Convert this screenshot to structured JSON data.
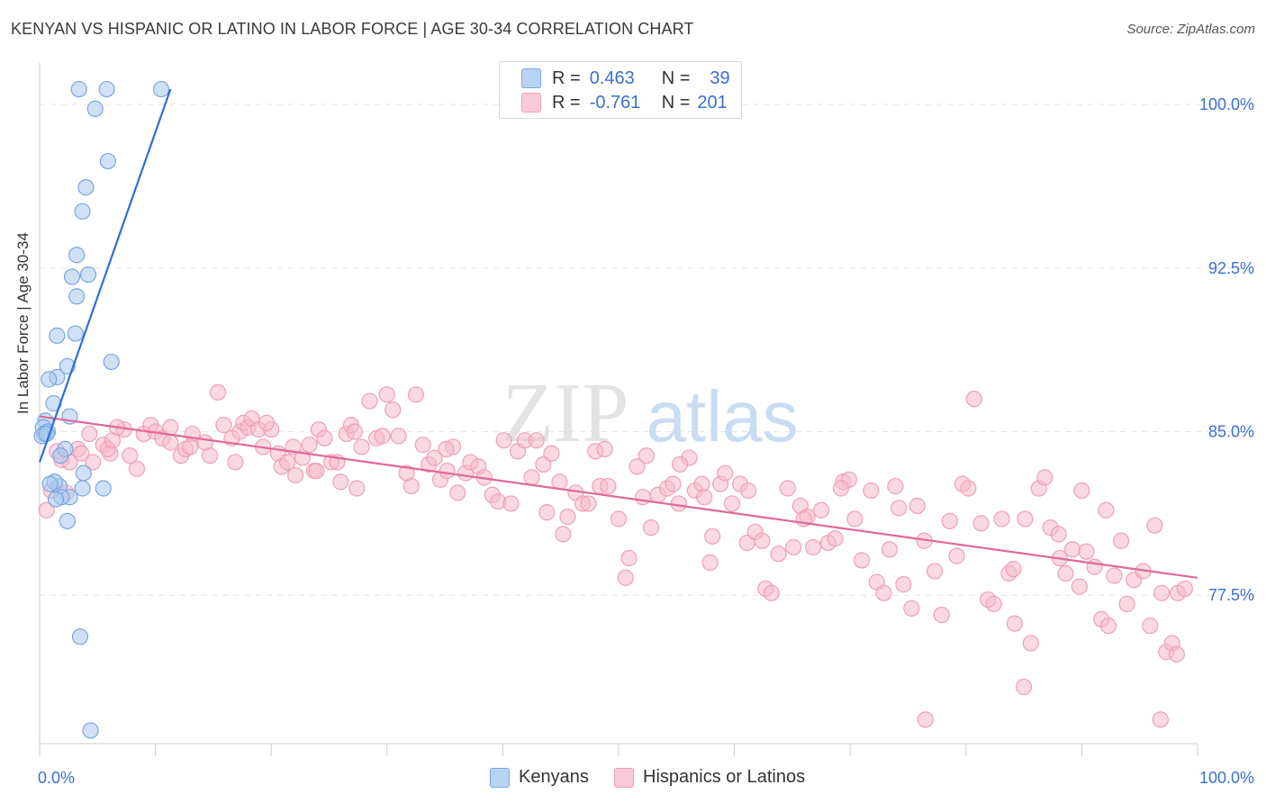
{
  "header": {
    "title": "KENYAN VS HISPANIC OR LATINO IN LABOR FORCE | AGE 30-34 CORRELATION CHART",
    "source": "Source: ZipAtlas.com"
  },
  "legend": {
    "rows": [
      {
        "r_label": "R =",
        "r_value": "0.463",
        "n_label": "N =",
        "n_value": "39"
      },
      {
        "r_label": "R =",
        "r_value": "-0.761",
        "n_label": "N =",
        "n_value": "201"
      }
    ]
  },
  "bottom_legend": {
    "kenyans": "Kenyans",
    "hispanics": "Hispanics or Latinos"
  },
  "colors": {
    "blue_fill": "#a9c8f0",
    "blue_stroke": "#7aa6e0",
    "blue_line": "#2e6fd6",
    "pink_fill": "#f6b9cb",
    "pink_stroke": "#eea0b7",
    "pink_line": "#e0689a",
    "tick_text": "#3b6fd0",
    "grid": "#e6e6e6"
  },
  "watermark": {
    "zip": "ZIP",
    "atlas": "atlas"
  },
  "chart_data": {
    "type": "scatter",
    "title": "KENYAN VS HISPANIC OR LATINO IN LABOR FORCE | AGE 30-34 CORRELATION CHART",
    "xlabel": "",
    "ylabel": "In Labor Force | Age 30-34",
    "xlim": [
      0,
      100
    ],
    "ylim": [
      70.7,
      101.9
    ],
    "x_tick_labels": [
      "0.0%",
      "100.0%"
    ],
    "y_ticks": [
      77.5,
      85.0,
      92.5,
      100.0
    ],
    "y_tick_labels": [
      "77.5%",
      "85.0%",
      "92.5%",
      "100.0%"
    ],
    "grid": true,
    "series": [
      {
        "name": "Kenyans",
        "r": 0.463,
        "n": 39,
        "trend": {
          "x": [
            0.0,
            11.3
          ],
          "y": [
            83.6,
            100.7
          ]
        },
        "points": [
          [
            3.4,
            100.7
          ],
          [
            5.8,
            100.7
          ],
          [
            10.5,
            100.7
          ],
          [
            4.8,
            99.8
          ],
          [
            5.9,
            97.4
          ],
          [
            4.0,
            96.2
          ],
          [
            3.7,
            95.1
          ],
          [
            3.2,
            93.1
          ],
          [
            4.2,
            92.2
          ],
          [
            2.8,
            92.1
          ],
          [
            3.2,
            91.2
          ],
          [
            1.5,
            89.4
          ],
          [
            3.1,
            89.5
          ],
          [
            6.2,
            88.2
          ],
          [
            2.4,
            88.0
          ],
          [
            1.5,
            87.5
          ],
          [
            0.8,
            87.4
          ],
          [
            1.2,
            86.3
          ],
          [
            2.6,
            85.7
          ],
          [
            0.5,
            85.5
          ],
          [
            0.3,
            85.2
          ],
          [
            0.7,
            85.0
          ],
          [
            0.4,
            84.9
          ],
          [
            0.2,
            84.8
          ],
          [
            0.6,
            84.9
          ],
          [
            2.2,
            84.2
          ],
          [
            1.8,
            83.9
          ],
          [
            3.8,
            83.1
          ],
          [
            1.7,
            82.5
          ],
          [
            1.3,
            82.7
          ],
          [
            3.7,
            82.4
          ],
          [
            2.6,
            82.0
          ],
          [
            1.9,
            82.0
          ],
          [
            1.4,
            81.9
          ],
          [
            2.4,
            80.9
          ],
          [
            0.9,
            82.6
          ],
          [
            3.5,
            75.6
          ],
          [
            4.4,
            71.3
          ],
          [
            5.5,
            82.4
          ]
        ]
      },
      {
        "name": "Hispanics or Latinos",
        "r": -0.761,
        "n": 201,
        "trend": {
          "x": [
            0.0,
            100.0
          ],
          "y": [
            85.7,
            78.3
          ]
        },
        "points": [
          [
            0.6,
            81.4
          ],
          [
            1.0,
            82.3
          ],
          [
            2.3,
            82.2
          ],
          [
            1.9,
            83.7
          ],
          [
            3.3,
            84.2
          ],
          [
            2.6,
            83.6
          ],
          [
            3.6,
            84.0
          ],
          [
            4.6,
            83.6
          ],
          [
            4.3,
            84.9
          ],
          [
            5.5,
            84.4
          ],
          [
            6.1,
            84.0
          ],
          [
            5.9,
            84.2
          ],
          [
            6.3,
            84.6
          ],
          [
            7.3,
            85.1
          ],
          [
            7.8,
            83.9
          ],
          [
            8.4,
            83.3
          ],
          [
            9.0,
            84.9
          ],
          [
            9.6,
            85.3
          ],
          [
            10.0,
            85.0
          ],
          [
            10.6,
            84.7
          ],
          [
            11.3,
            85.2
          ],
          [
            11.3,
            84.5
          ],
          [
            12.2,
            83.9
          ],
          [
            12.6,
            84.2
          ],
          [
            13.2,
            84.9
          ],
          [
            14.3,
            84.5
          ],
          [
            14.7,
            83.9
          ],
          [
            15.4,
            86.8
          ],
          [
            15.9,
            85.3
          ],
          [
            16.6,
            84.7
          ],
          [
            16.9,
            83.6
          ],
          [
            17.3,
            85.0
          ],
          [
            17.6,
            85.4
          ],
          [
            18.0,
            85.2
          ],
          [
            18.3,
            85.6
          ],
          [
            18.9,
            85.1
          ],
          [
            19.3,
            84.3
          ],
          [
            20.0,
            85.1
          ],
          [
            20.6,
            84.0
          ],
          [
            20.9,
            83.4
          ],
          [
            21.4,
            83.6
          ],
          [
            21.9,
            84.3
          ],
          [
            22.1,
            83.0
          ],
          [
            22.7,
            83.8
          ],
          [
            23.3,
            84.4
          ],
          [
            23.7,
            83.2
          ],
          [
            24.1,
            85.1
          ],
          [
            24.6,
            84.7
          ],
          [
            25.2,
            83.6
          ],
          [
            25.7,
            83.6
          ],
          [
            26.0,
            82.7
          ],
          [
            26.5,
            84.9
          ],
          [
            26.9,
            85.3
          ],
          [
            27.4,
            82.4
          ],
          [
            27.8,
            84.3
          ],
          [
            28.5,
            86.4
          ],
          [
            29.1,
            84.7
          ],
          [
            29.6,
            84.8
          ],
          [
            30.0,
            86.7
          ],
          [
            30.5,
            86.0
          ],
          [
            31.0,
            84.8
          ],
          [
            31.7,
            83.1
          ],
          [
            32.1,
            82.5
          ],
          [
            32.5,
            86.7
          ],
          [
            33.1,
            84.4
          ],
          [
            33.6,
            83.5
          ],
          [
            34.1,
            83.8
          ],
          [
            34.6,
            82.8
          ],
          [
            35.2,
            83.2
          ],
          [
            35.7,
            84.3
          ],
          [
            36.1,
            82.2
          ],
          [
            36.8,
            83.1
          ],
          [
            37.2,
            83.6
          ],
          [
            37.9,
            83.4
          ],
          [
            38.4,
            82.9
          ],
          [
            39.1,
            82.1
          ],
          [
            39.6,
            81.8
          ],
          [
            40.1,
            84.6
          ],
          [
            40.7,
            81.7
          ],
          [
            41.3,
            84.1
          ],
          [
            41.9,
            84.6
          ],
          [
            42.5,
            82.9
          ],
          [
            42.9,
            84.6
          ],
          [
            43.5,
            83.5
          ],
          [
            43.8,
            81.3
          ],
          [
            44.2,
            84.0
          ],
          [
            44.9,
            82.7
          ],
          [
            45.2,
            80.3
          ],
          [
            45.6,
            81.1
          ],
          [
            46.3,
            82.2
          ],
          [
            46.9,
            81.7
          ],
          [
            47.4,
            81.7
          ],
          [
            48.0,
            84.1
          ],
          [
            48.4,
            82.5
          ],
          [
            49.1,
            82.5
          ],
          [
            50.0,
            81.0
          ],
          [
            50.6,
            78.3
          ],
          [
            50.9,
            79.2
          ],
          [
            51.6,
            83.4
          ],
          [
            52.1,
            82.0
          ],
          [
            52.8,
            80.6
          ],
          [
            53.4,
            82.1
          ],
          [
            54.2,
            82.4
          ],
          [
            54.7,
            82.6
          ],
          [
            55.2,
            81.7
          ],
          [
            56.1,
            83.8
          ],
          [
            56.6,
            82.3
          ],
          [
            57.2,
            82.6
          ],
          [
            57.9,
            79.0
          ],
          [
            58.1,
            80.2
          ],
          [
            58.8,
            82.6
          ],
          [
            59.2,
            83.1
          ],
          [
            59.8,
            81.7
          ],
          [
            60.5,
            82.6
          ],
          [
            61.1,
            79.9
          ],
          [
            61.8,
            80.4
          ],
          [
            62.4,
            80.0
          ],
          [
            62.7,
            77.8
          ],
          [
            63.2,
            77.6
          ],
          [
            63.8,
            79.4
          ],
          [
            64.6,
            82.4
          ],
          [
            65.1,
            79.7
          ],
          [
            65.7,
            81.6
          ],
          [
            66.3,
            81.1
          ],
          [
            66.8,
            79.7
          ],
          [
            67.5,
            81.4
          ],
          [
            68.1,
            79.9
          ],
          [
            68.7,
            80.1
          ],
          [
            69.4,
            82.7
          ],
          [
            69.9,
            82.8
          ],
          [
            70.4,
            81.0
          ],
          [
            71.0,
            79.1
          ],
          [
            71.8,
            82.3
          ],
          [
            72.3,
            78.1
          ],
          [
            72.9,
            77.6
          ],
          [
            73.4,
            79.6
          ],
          [
            74.2,
            81.5
          ],
          [
            74.6,
            78.0
          ],
          [
            75.3,
            76.9
          ],
          [
            75.8,
            81.6
          ],
          [
            76.4,
            80.0
          ],
          [
            77.3,
            78.6
          ],
          [
            77.9,
            76.6
          ],
          [
            78.6,
            80.9
          ],
          [
            79.2,
            79.3
          ],
          [
            79.7,
            82.6
          ],
          [
            80.2,
            82.4
          ],
          [
            80.7,
            86.5
          ],
          [
            81.3,
            80.8
          ],
          [
            81.9,
            77.3
          ],
          [
            82.4,
            77.1
          ],
          [
            83.1,
            81.0
          ],
          [
            83.7,
            78.5
          ],
          [
            84.2,
            76.2
          ],
          [
            85.1,
            81.0
          ],
          [
            85.6,
            75.3
          ],
          [
            86.3,
            82.4
          ],
          [
            86.8,
            82.9
          ],
          [
            87.3,
            80.6
          ],
          [
            88.1,
            79.2
          ],
          [
            88.6,
            78.5
          ],
          [
            89.2,
            79.6
          ],
          [
            89.8,
            77.9
          ],
          [
            90.4,
            79.5
          ],
          [
            91.1,
            78.8
          ],
          [
            91.7,
            76.4
          ],
          [
            92.3,
            76.1
          ],
          [
            92.8,
            78.4
          ],
          [
            93.4,
            80.0
          ],
          [
            93.9,
            77.1
          ],
          [
            94.5,
            78.2
          ],
          [
            95.3,
            78.6
          ],
          [
            95.9,
            76.1
          ],
          [
            96.3,
            80.7
          ],
          [
            96.9,
            77.6
          ],
          [
            97.3,
            74.9
          ],
          [
            97.8,
            75.3
          ],
          [
            98.3,
            77.6
          ],
          [
            98.9,
            77.8
          ],
          [
            90.0,
            82.3
          ],
          [
            92.1,
            81.4
          ],
          [
            85.0,
            73.3
          ],
          [
            76.5,
            71.8
          ],
          [
            96.8,
            71.8
          ],
          [
            98.2,
            74.8
          ],
          [
            48.8,
            84.2
          ],
          [
            35.1,
            84.2
          ],
          [
            23.9,
            83.2
          ],
          [
            13.0,
            84.3
          ],
          [
            6.7,
            85.2
          ],
          [
            1.5,
            84.1
          ],
          [
            66.0,
            81.0
          ],
          [
            69.2,
            82.4
          ],
          [
            84.1,
            78.7
          ],
          [
            27.2,
            85.0
          ],
          [
            19.6,
            85.4
          ],
          [
            88.0,
            80.3
          ],
          [
            73.9,
            82.5
          ],
          [
            55.3,
            83.5
          ],
          [
            61.2,
            82.3
          ],
          [
            57.4,
            82.0
          ],
          [
            52.4,
            83.9
          ]
        ]
      }
    ]
  }
}
